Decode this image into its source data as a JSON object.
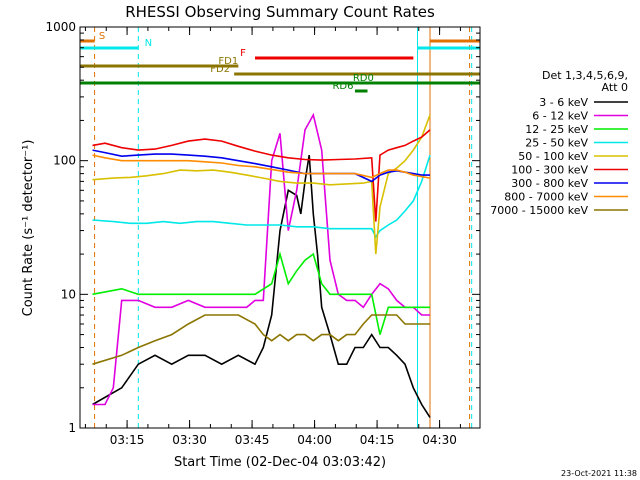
{
  "chart_data": {
    "type": "line",
    "title": "RHESSI Observing Summary Count Rates",
    "xlabel": "Start Time (02-Dec-04 03:03:42)",
    "ylabel": "Count Rate (s⁻¹ detector⁻¹)",
    "yscale": "log",
    "ylim": [
      1,
      1000
    ],
    "xlim_minutes": [
      0,
      96
    ],
    "xticks": [
      {
        "t": 11.3,
        "label": "03:15"
      },
      {
        "t": 26.3,
        "label": "03:30"
      },
      {
        "t": 41.3,
        "label": "03:45"
      },
      {
        "t": 56.3,
        "label": "04:00"
      },
      {
        "t": 71.3,
        "label": "04:15"
      },
      {
        "t": 86.3,
        "label": "04:30"
      }
    ],
    "yticks": [
      {
        "v": 1,
        "label": "1"
      },
      {
        "v": 10,
        "label": "10"
      },
      {
        "v": 100,
        "label": "100"
      },
      {
        "v": 1000,
        "label": "1000"
      }
    ],
    "legend": {
      "header": [
        "Det 1,3,4,5,6,9,",
        "Att 0"
      ],
      "placement": "right"
    },
    "series": [
      {
        "name": "3 - 6 keV",
        "color": "#000000",
        "t": [
          3,
          10,
          14,
          18,
          22,
          26,
          30,
          34,
          38,
          42,
          44,
          46,
          48,
          50,
          52,
          53,
          54,
          55,
          56,
          57,
          58,
          60,
          62,
          64,
          66,
          68,
          70,
          72,
          74,
          76,
          78,
          80,
          82,
          84
        ],
        "v": [
          1.5,
          2,
          3,
          3.5,
          3,
          3.5,
          3.5,
          3,
          3.5,
          3,
          4,
          7,
          30,
          60,
          55,
          40,
          70,
          110,
          40,
          20,
          8,
          5,
          3,
          3,
          4,
          4,
          5,
          4,
          4,
          3.5,
          3,
          2,
          1.5,
          1.2
        ]
      },
      {
        "name": "6 - 12 keV",
        "color": "#e000e0",
        "t": [
          3,
          6,
          8,
          10,
          14,
          18,
          22,
          26,
          30,
          34,
          38,
          40,
          42,
          44,
          46,
          48,
          50,
          52,
          54,
          56,
          58,
          60,
          62,
          64,
          66,
          68,
          70,
          72,
          74,
          76,
          78,
          80,
          82,
          84
        ],
        "v": [
          1.5,
          1.5,
          2,
          9,
          9,
          8,
          8,
          9,
          8,
          8,
          8,
          8,
          9,
          9,
          100,
          160,
          30,
          60,
          170,
          220,
          120,
          18,
          10,
          9,
          9,
          8,
          10,
          12,
          11,
          9,
          8,
          8,
          7,
          7
        ]
      },
      {
        "name": "12 - 25 keV",
        "color": "#00ee00",
        "t": [
          3,
          10,
          14,
          18,
          22,
          26,
          30,
          34,
          38,
          42,
          46,
          48,
          50,
          52,
          54,
          56,
          58,
          60,
          62,
          64,
          66,
          68,
          70,
          72,
          74,
          76,
          78,
          80,
          82,
          84
        ],
        "v": [
          10,
          11,
          10,
          10,
          10,
          10,
          10,
          10,
          10,
          10,
          12,
          20,
          12,
          15,
          18,
          20,
          12,
          10,
          10,
          10,
          10,
          10,
          10,
          5,
          8,
          8,
          8,
          8,
          8,
          8
        ]
      },
      {
        "name": "25 - 50 keV",
        "color": "#00e8e8",
        "t": [
          3,
          8,
          12,
          16,
          20,
          24,
          28,
          32,
          36,
          40,
          44,
          48,
          52,
          56,
          60,
          64,
          68,
          70,
          71,
          72,
          74,
          76,
          78,
          80,
          82,
          84
        ],
        "v": [
          36,
          35,
          34,
          34,
          35,
          34,
          35,
          35,
          34,
          33,
          33,
          33,
          32,
          32,
          31,
          31,
          31,
          31,
          27,
          30,
          33,
          36,
          42,
          50,
          70,
          110
        ]
      },
      {
        "name": "50 - 100 keV",
        "color": "#d8c000",
        "t": [
          3,
          8,
          12,
          16,
          20,
          24,
          28,
          32,
          36,
          40,
          44,
          48,
          52,
          56,
          60,
          64,
          68,
          70,
          71,
          72,
          74,
          76,
          78,
          80,
          82,
          84
        ],
        "v": [
          72,
          74,
          75,
          77,
          80,
          85,
          84,
          85,
          82,
          78,
          74,
          70,
          68,
          68,
          66,
          67,
          68,
          70,
          20,
          45,
          80,
          88,
          100,
          120,
          150,
          220
        ]
      },
      {
        "name": "100 - 300 keV",
        "color": "#ee0000",
        "t": [
          3,
          6,
          10,
          14,
          18,
          22,
          26,
          30,
          34,
          38,
          42,
          46,
          50,
          54,
          58,
          62,
          66,
          70,
          71,
          72,
          74,
          76,
          78,
          80,
          82,
          84
        ],
        "v": [
          130,
          135,
          125,
          120,
          122,
          130,
          140,
          145,
          140,
          128,
          118,
          110,
          105,
          102,
          101,
          102,
          103,
          105,
          35,
          110,
          120,
          125,
          130,
          140,
          150,
          170
        ]
      },
      {
        "name": "300 - 800 keV",
        "color": "#0000ee",
        "t": [
          3,
          6,
          10,
          14,
          18,
          22,
          26,
          30,
          34,
          38,
          42,
          46,
          50,
          54,
          58,
          62,
          66,
          70,
          72,
          74,
          76,
          78,
          80,
          82,
          84
        ],
        "v": [
          120,
          115,
          108,
          110,
          112,
          112,
          110,
          108,
          105,
          100,
          95,
          90,
          85,
          80,
          80,
          80,
          80,
          70,
          78,
          82,
          84,
          82,
          80,
          78,
          78
        ]
      },
      {
        "name": "800 - 7000 keV",
        "color": "#ff8c00",
        "t": [
          3,
          6,
          10,
          14,
          18,
          22,
          26,
          30,
          34,
          38,
          42,
          46,
          50,
          54,
          58,
          62,
          66,
          70,
          72,
          74,
          76,
          78,
          80,
          82,
          84
        ],
        "v": [
          110,
          105,
          100,
          100,
          100,
          100,
          100,
          98,
          96,
          92,
          90,
          86,
          82,
          80,
          80,
          80,
          80,
          75,
          80,
          85,
          85,
          82,
          78,
          76,
          74
        ]
      },
      {
        "name": "7000 - 15000 keV",
        "color": "#8b7500",
        "t": [
          3,
          10,
          14,
          18,
          22,
          26,
          30,
          34,
          38,
          42,
          44,
          46,
          48,
          50,
          52,
          54,
          56,
          58,
          60,
          62,
          64,
          66,
          68,
          70,
          72,
          74,
          76,
          78,
          80,
          82,
          84
        ],
        "v": [
          3,
          3.5,
          4,
          4.5,
          5,
          6,
          7,
          7,
          7,
          6,
          5,
          4.5,
          5,
          4.5,
          5,
          5,
          4.5,
          5,
          5,
          4.5,
          5,
          5,
          6,
          7,
          7,
          7,
          7,
          6,
          6,
          6,
          6
        ]
      }
    ],
    "state_bars": [
      {
        "label": "S",
        "color": "#e07000",
        "segments": [
          [
            0,
            3.5
          ],
          [
            84,
            96
          ]
        ],
        "level": "top"
      },
      {
        "label": "N",
        "color": "#00e8e8",
        "segments": [
          [
            0,
            14
          ],
          [
            81,
            96
          ]
        ],
        "level": "second"
      },
      {
        "label": "F",
        "color": "#ee0000",
        "segments": [
          [
            42,
            80
          ]
        ],
        "level": "third"
      },
      {
        "label": "FD1",
        "color": "#8b7500",
        "segments": [
          [
            0,
            38
          ]
        ],
        "level": "fourth"
      },
      {
        "label": "FD2",
        "color": "#8b7500",
        "segments": [
          [
            37,
            96
          ]
        ],
        "level": "fifth"
      },
      {
        "label": "RD0",
        "color": "#008000",
        "segments": [
          [
            0,
            96
          ]
        ],
        "level": "sixth"
      },
      {
        "label": "RD6",
        "color": "#008000",
        "segments": [
          [
            66,
            69
          ]
        ],
        "level": "seventh"
      }
    ],
    "vlines": [
      {
        "t": 3.5,
        "color": "#e07000",
        "style": "dashed"
      },
      {
        "t": 14,
        "color": "#00e8e8",
        "style": "dashed"
      },
      {
        "t": 81,
        "color": "#00e8e8",
        "style": "solid"
      },
      {
        "t": 84,
        "color": "#e07000",
        "style": "solid"
      },
      {
        "t": 94,
        "color": "#00e8e8",
        "style": "dashed"
      },
      {
        "t": 93.5,
        "color": "#e07000",
        "style": "dashed"
      }
    ],
    "footer_date": "23-Oct-2021 11:38"
  }
}
